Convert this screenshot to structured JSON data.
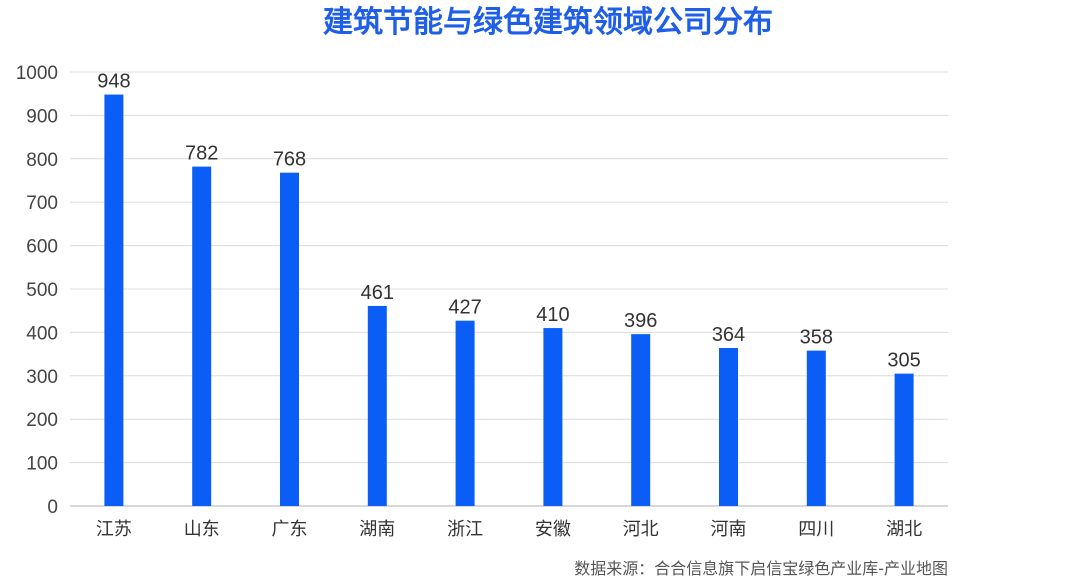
{
  "chart_data": {
    "type": "bar",
    "title": "建筑节能与绿色建筑领域公司分布",
    "source": "数据来源：合合信息旗下启信宝绿色产业库-产业地图",
    "categories": [
      "江苏",
      "山东",
      "广东",
      "湖南",
      "浙江",
      "安徽",
      "河北",
      "河南",
      "四川",
      "湖北"
    ],
    "values": [
      948,
      782,
      768,
      461,
      427,
      410,
      396,
      364,
      358,
      305
    ],
    "ylim": [
      0,
      1000
    ],
    "yticks": [
      0,
      100,
      200,
      300,
      400,
      500,
      600,
      700,
      800,
      900,
      1000
    ],
    "xlabel": "",
    "ylabel": "",
    "grid": true,
    "legend": "none",
    "colors": {
      "bar": "#0a5ef5",
      "title": "#1f5fe8",
      "grid": "#dcdcdc",
      "axis": "#b0b0b0"
    }
  }
}
